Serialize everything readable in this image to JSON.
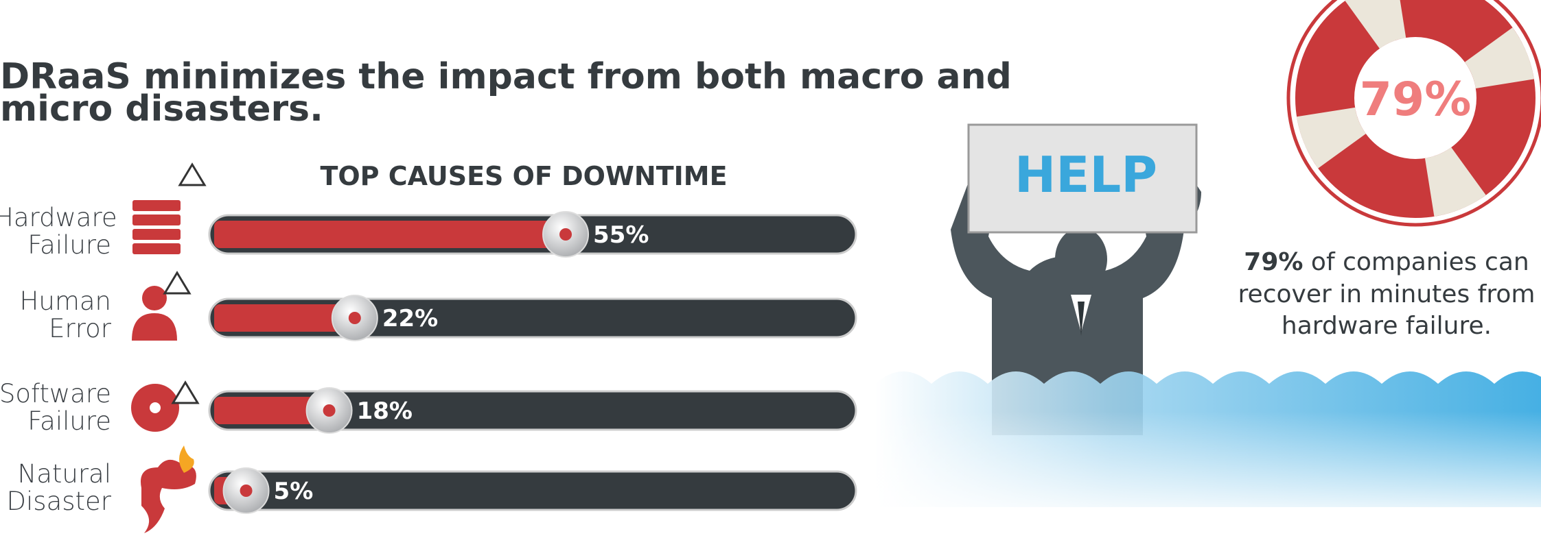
{
  "headline": [
    "DRaaS minimizes the impact from both macro and",
    "micro disasters."
  ],
  "chart_data": {
    "type": "hbar",
    "title": "TOP CAUSES OF DOWNTIME",
    "categories": [
      "Hardware Failure",
      "Human Error",
      "Software Failure",
      "Natural Disaster"
    ],
    "values": [
      55,
      22,
      18,
      5
    ],
    "value_labels": [
      "55%",
      "22%",
      "18%",
      "5%"
    ],
    "color": "#c9393b",
    "track_color": "#353b3f",
    "xlim": [
      0,
      100
    ]
  },
  "infographic": {
    "sign_text": "HELP",
    "stat": "79%",
    "caption_emphasis": "79%",
    "caption_lines": [
      "of companies can",
      "recover in minutes from",
      "hardware failure."
    ]
  }
}
